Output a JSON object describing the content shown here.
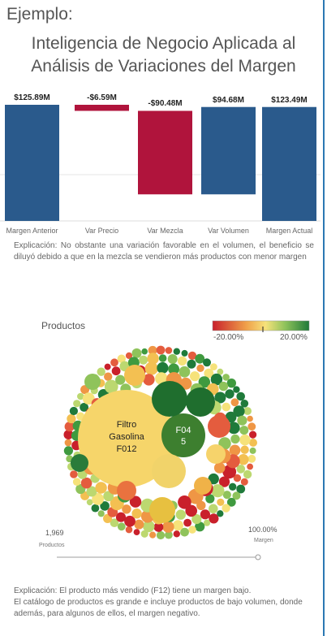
{
  "header": {
    "kicker": "Ejemplo:",
    "title_line1": "Inteligencia de Negocio Aplicada al",
    "title_line2": "Análisis de Variaciones del Margen"
  },
  "colors": {
    "blue": "#2a5a8c",
    "red": "#b0143c",
    "accent_rule": "#2b78b3"
  },
  "chart_data": {
    "type": "bar",
    "categories": [
      "Margen Anterior",
      "Var Precio",
      "Var Mezcla",
      "Var Volumen",
      "Margen Actual"
    ],
    "values": [
      125.89,
      -6.59,
      -90.48,
      94.68,
      123.49
    ],
    "labels": [
      "$125.89M",
      "-$6.59M",
      "-$90.48M",
      "$94.68M",
      "$123.49M"
    ],
    "unit": "M",
    "waterfall": true
  },
  "explanation1": "Explicación: No obstante una variación favorable en el volumen, el beneficio se diluyó debido a que en la mezcla se vendieron más productos con menor margen",
  "products": {
    "title": "Productos",
    "legend_min": "-20.00%",
    "legend_max": "20.00%",
    "big_bubble_text": [
      "Filtro",
      "Gasolina",
      "F012"
    ],
    "second_bubble_text": [
      "F04",
      "5"
    ],
    "count_value": "1,969",
    "count_label": "Productos",
    "margin_value": "100.00%",
    "margin_label": "Margen"
  },
  "explanation2_line1": "Explicación: El producto más vendido (F12) tiene un margen bajo.",
  "explanation2_line2": "El catálogo de productos es grande e incluye productos de bajo volumen, donde además, para algunos de ellos, el margen negativo."
}
